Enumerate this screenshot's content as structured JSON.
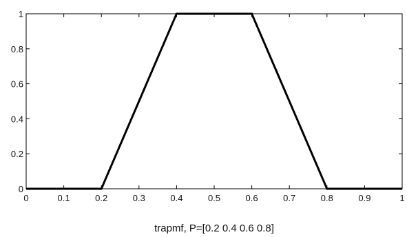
{
  "chart_data": {
    "type": "line",
    "title": "",
    "xlabel": "trapmf, P=[0.2 0.4 0.6 0.8]",
    "ylabel": "",
    "xlim": [
      0,
      1
    ],
    "ylim": [
      0,
      1
    ],
    "x_ticks": [
      0,
      0.1,
      0.2,
      0.3,
      0.4,
      0.5,
      0.6,
      0.7,
      0.8,
      0.9,
      1
    ],
    "x_tick_labels": [
      "0",
      "0.1",
      "0.2",
      "0.3",
      "0.4",
      "0.5",
      "0.6",
      "0.7",
      "0.8",
      "0.9",
      "1"
    ],
    "y_ticks": [
      0,
      0.2,
      0.4,
      0.6,
      0.8,
      1
    ],
    "y_tick_labels": [
      "0",
      "0.2",
      "0.4",
      "0.6",
      "0.8",
      "1"
    ],
    "grid": false,
    "series": [
      {
        "x": [
          0,
          0.2,
          0.4,
          0.6,
          0.8,
          1
        ],
        "y": [
          0,
          0,
          1,
          1,
          0,
          0
        ],
        "color": "#000000"
      }
    ]
  }
}
